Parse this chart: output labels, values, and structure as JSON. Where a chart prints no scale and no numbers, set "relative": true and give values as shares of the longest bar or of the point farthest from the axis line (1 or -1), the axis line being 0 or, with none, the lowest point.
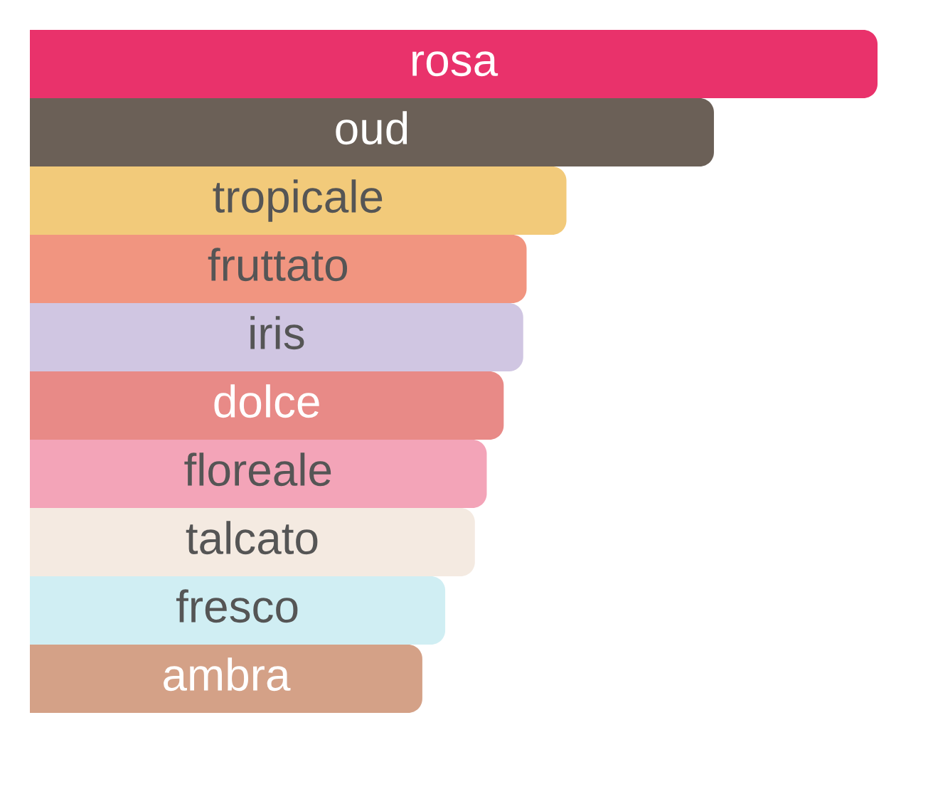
{
  "chart_data": {
    "type": "bar",
    "orientation": "horizontal",
    "relative": true,
    "categories": [
      "rosa",
      "oud",
      "tropicale",
      "fruttato",
      "iris",
      "dolce",
      "floreale",
      "talcato",
      "fresco",
      "ambra"
    ],
    "values": [
      1,
      0.807,
      0.633,
      0.586,
      0.582,
      0.559,
      0.539,
      0.525,
      0.49,
      0.463
    ],
    "colors": [
      "#e9326b",
      "#6b6057",
      "#f2ca7a",
      "#f19580",
      "#d0c6e2",
      "#e88a87",
      "#f3a4b8",
      "#f4eae1",
      "#d0eef3",
      "#d4a187"
    ]
  }
}
